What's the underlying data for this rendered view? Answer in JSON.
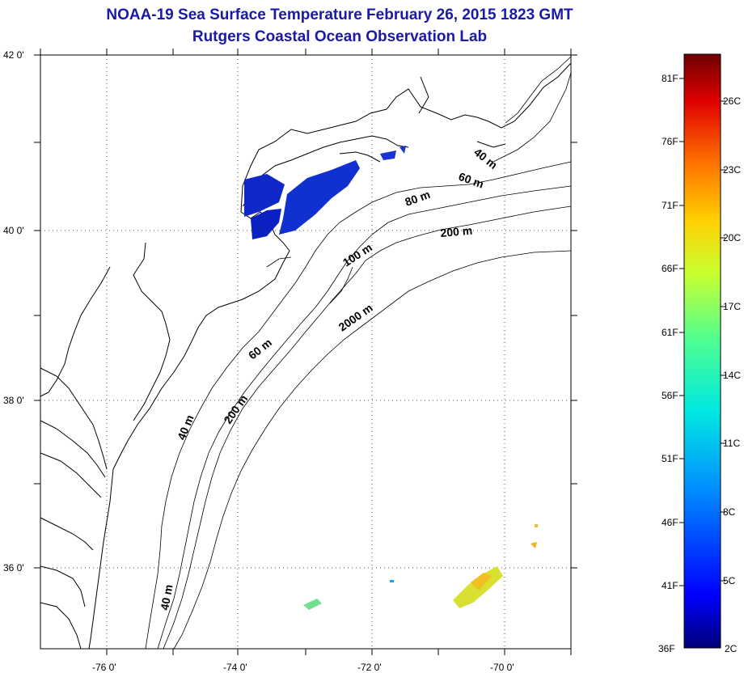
{
  "title": {
    "line1": "NOAA-19 Sea Surface Temperature February 26, 2015 1823 GMT",
    "line2": "Rutgers Coastal Ocean Observation Lab"
  },
  "axes": {
    "x_ticks": [
      "-76 0'",
      "-74 0'",
      "-72 0'",
      "-70 0'"
    ],
    "y_ticks": [
      "42 0'",
      "40 0'",
      "38 0'",
      "36 0'"
    ]
  },
  "contours": {
    "labels": [
      "40 m",
      "60 m",
      "80 m",
      "200 m",
      "100 m",
      "2000 m",
      "60 m",
      "200 m",
      "40 m",
      "40 m"
    ]
  },
  "colorbar": {
    "fahrenheit": [
      "81F",
      "76F",
      "71F",
      "66F",
      "61F",
      "56F",
      "51F",
      "46F",
      "41F",
      "36F"
    ],
    "celsius": [
      "26C",
      "23C",
      "20C",
      "17C",
      "14C",
      "11C",
      "8C",
      "5C",
      "2C"
    ],
    "colors": [
      "#7a0000",
      "#c00000",
      "#ff2000",
      "#ff8000",
      "#ffd000",
      "#c8ff30",
      "#60ff80",
      "#00e0d0",
      "#0090ff",
      "#0030ff",
      "#0000c0",
      "#00007a"
    ]
  }
}
